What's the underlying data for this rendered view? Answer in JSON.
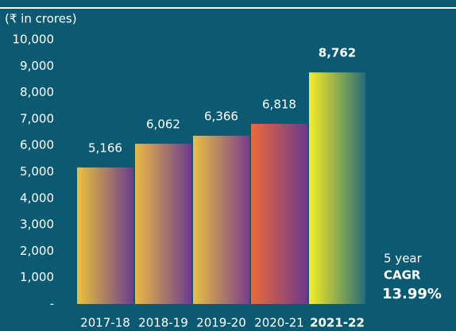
{
  "chart_data": {
    "type": "bar",
    "y_axis_label": "(₹ in crores)",
    "categories": [
      "2017-18",
      "2018-19",
      "2019-20",
      "2020-21",
      "2021-22"
    ],
    "values": [
      5166,
      6062,
      6366,
      6818,
      8762
    ],
    "value_labels": [
      "5,166",
      "6,062",
      "6,366",
      "6,818",
      "8,762"
    ],
    "bar_gradients": [
      [
        "#ecc23c",
        "#6b3c8e"
      ],
      [
        "#ecb948",
        "#6b3b90"
      ],
      [
        "#e9c043",
        "#7a3c8c"
      ],
      [
        "#ea6a38",
        "#6d398c"
      ],
      [
        "#f6ee28",
        "#276b7a"
      ]
    ],
    "highlight_index": 4,
    "ylim": [
      0,
      10000
    ],
    "yticks": [
      {
        "value": 0,
        "label": "-"
      },
      {
        "value": 1000,
        "label": "1,000"
      },
      {
        "value": 2000,
        "label": "2,000"
      },
      {
        "value": 3000,
        "label": "3,000"
      },
      {
        "value": 4000,
        "label": "4,000"
      },
      {
        "value": 5000,
        "label": "5,000"
      },
      {
        "value": 6000,
        "label": "6,000"
      },
      {
        "value": 7000,
        "label": "7,000"
      },
      {
        "value": 8000,
        "label": "8,000"
      },
      {
        "value": 9000,
        "label": "9,000"
      },
      {
        "value": 10000,
        "label": "10,000"
      }
    ],
    "annotation": [
      "5 year",
      "CAGR",
      "13.99%"
    ]
  }
}
